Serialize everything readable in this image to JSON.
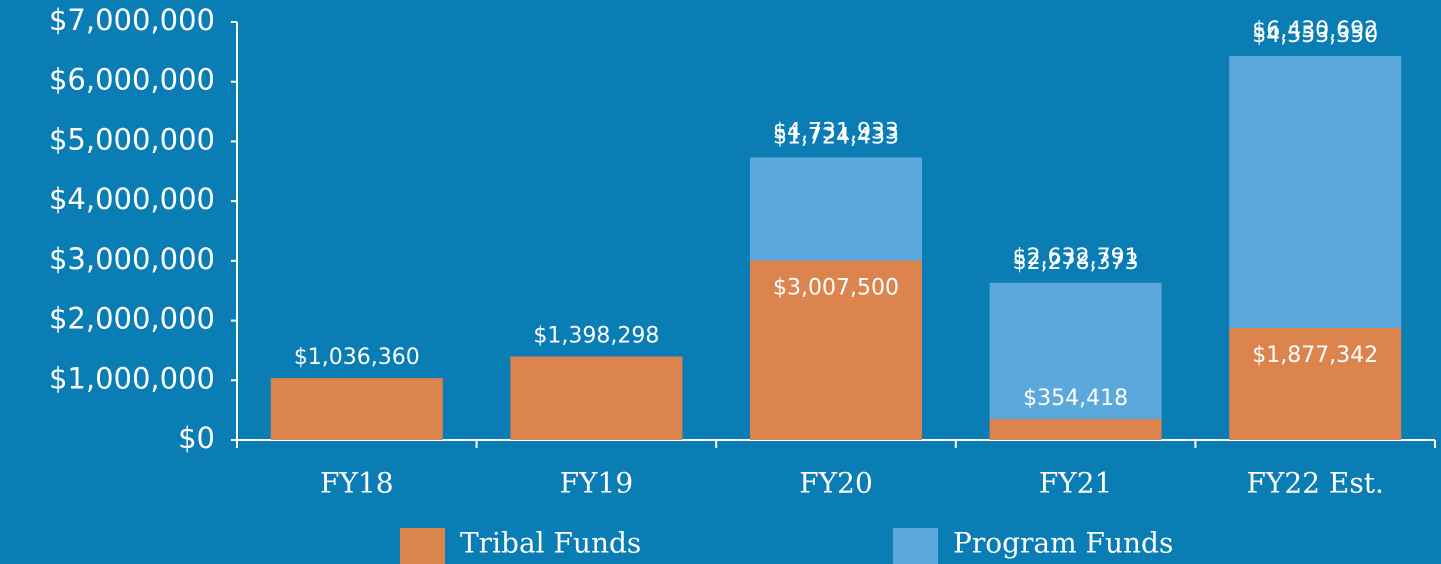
{
  "chart_data": {
    "type": "stacked_bar",
    "categories": [
      "FY18",
      "FY19",
      "FY20",
      "FY21",
      "FY22 Est."
    ],
    "series": [
      {
        "name": "Tribal Funds",
        "color": "#dc844e",
        "values": [
          1036360,
          1398298,
          3007500,
          354418,
          1877342
        ],
        "value_labels": [
          "$1,036,360",
          "$1,398,298",
          "$3,007,500",
          "$354,418",
          "$1,877,342"
        ]
      },
      {
        "name": "Program Funds",
        "color": "#5ba9dc",
        "values": [
          null,
          null,
          1724433,
          2278373,
          4553350
        ],
        "value_labels": [
          null,
          null,
          "$1,724,433",
          "$2,278,373",
          "$4,553,350"
        ]
      }
    ],
    "totals": [
      null,
      null,
      4731933,
      2632791,
      6430692
    ],
    "total_labels": [
      null,
      null,
      "$4,731,933",
      "$2,632,791",
      "$6,430,692"
    ],
    "ylim": [
      0,
      7000000
    ],
    "yticks": [
      {
        "value": 0,
        "label": "$0"
      },
      {
        "value": 1000000,
        "label": "$1,000,000"
      },
      {
        "value": 2000000,
        "label": "$2,000,000"
      },
      {
        "value": 3000000,
        "label": "$3,000,000"
      },
      {
        "value": 4000000,
        "label": "$4,000,000"
      },
      {
        "value": 5000000,
        "label": "$5,000,000"
      },
      {
        "value": 6000000,
        "label": "$6,000,000"
      },
      {
        "value": 7000000,
        "label": "$7,000,000"
      }
    ],
    "legend": "bottom"
  }
}
